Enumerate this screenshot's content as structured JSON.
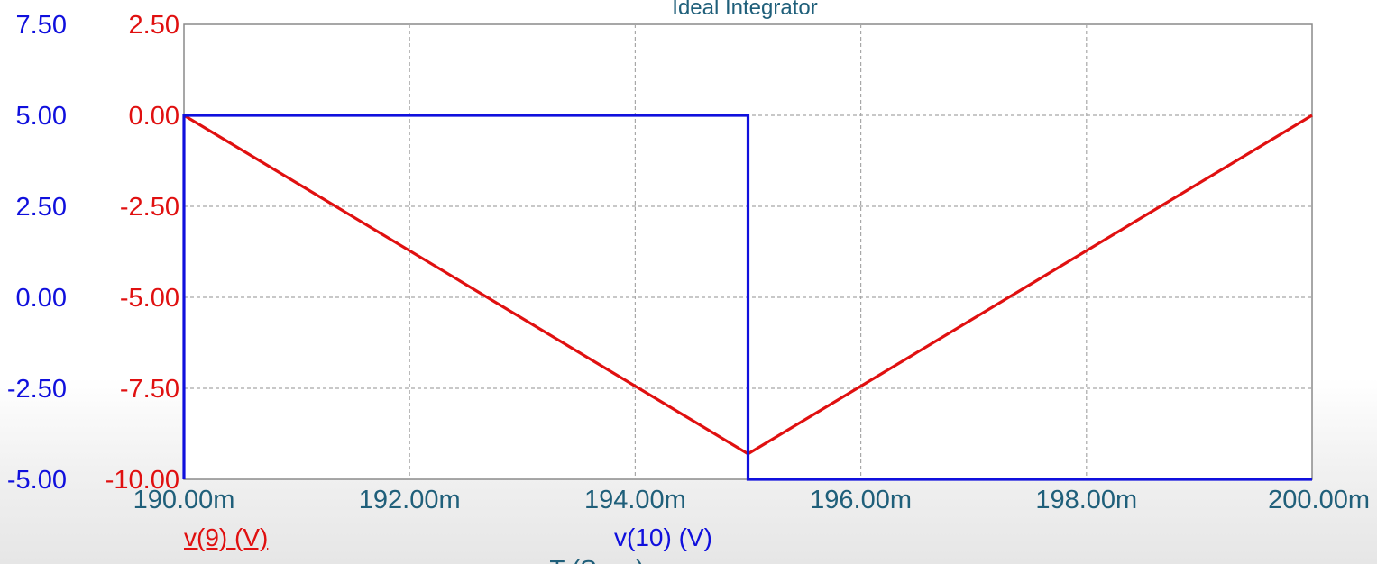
{
  "chart_data": {
    "type": "line",
    "title": "Ideal Integrator",
    "x": {
      "ticks": [
        "190.00m",
        "192.00m",
        "194.00m",
        "196.00m",
        "198.00m",
        "200.00m"
      ],
      "tick_values": [
        0.19,
        0.192,
        0.194,
        0.196,
        0.198,
        0.2
      ],
      "range": [
        0.19,
        0.2
      ],
      "label": "T (Secs)"
    },
    "y_left_outer": {
      "color": "#1010dd",
      "ticks": [
        "7.50",
        "5.00",
        "2.50",
        "0.00",
        "-2.50",
        "-5.00"
      ],
      "range": [
        -5,
        7.5
      ]
    },
    "y_left_inner": {
      "color": "#e01010",
      "ticks": [
        "2.50",
        "0.00",
        "-2.50",
        "-5.00",
        "-7.50",
        "-10.00"
      ],
      "range": [
        -10,
        2.5
      ]
    },
    "grid": true,
    "series": [
      {
        "name": "v(9) (V)",
        "color": "#e01010",
        "axis": "inner",
        "points": [
          [
            0.19,
            0.0
          ],
          [
            0.195,
            -9.3
          ],
          [
            0.2,
            0.0
          ]
        ]
      },
      {
        "name": "v(10) (V)",
        "color": "#1010dd",
        "axis": "outer",
        "points": [
          [
            0.19,
            -5.0
          ],
          [
            0.19,
            5.0
          ],
          [
            0.195,
            5.0
          ],
          [
            0.195,
            -5.0
          ],
          [
            0.2,
            -5.0
          ]
        ]
      }
    ]
  }
}
